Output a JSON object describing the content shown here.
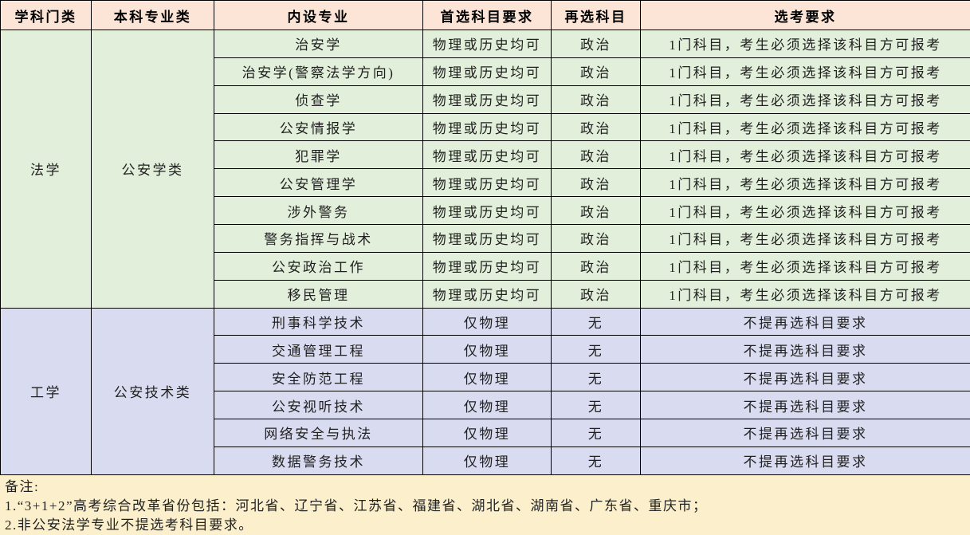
{
  "table": {
    "headers": [
      "学科门类",
      "本科专业类",
      "内设专业",
      "首选科目要求",
      "再选科目",
      "选考要求"
    ],
    "sections": [
      {
        "discipline": "法学",
        "major_class": "公安学类",
        "rows": [
          {
            "major": "治安学",
            "first_subject": "物理或历史均可",
            "second_subject": "政治",
            "requirement": "1门科目，考生必须选择该科目方可报考"
          },
          {
            "major": "治安学(警察法学方向)",
            "first_subject": "物理或历史均可",
            "second_subject": "政治",
            "requirement": "1门科目，考生必须选择该科目方可报考"
          },
          {
            "major": "侦查学",
            "first_subject": "物理或历史均可",
            "second_subject": "政治",
            "requirement": "1门科目，考生必须选择该科目方可报考"
          },
          {
            "major": "公安情报学",
            "first_subject": "物理或历史均可",
            "second_subject": "政治",
            "requirement": "1门科目，考生必须选择该科目方可报考"
          },
          {
            "major": "犯罪学",
            "first_subject": "物理或历史均可",
            "second_subject": "政治",
            "requirement": "1门科目，考生必须选择该科目方可报考"
          },
          {
            "major": "公安管理学",
            "first_subject": "物理或历史均可",
            "second_subject": "政治",
            "requirement": "1门科目，考生必须选择该科目方可报考"
          },
          {
            "major": "涉外警务",
            "first_subject": "物理或历史均可",
            "second_subject": "政治",
            "requirement": "1门科目，考生必须选择该科目方可报考"
          },
          {
            "major": "警务指挥与战术",
            "first_subject": "物理或历史均可",
            "second_subject": "政治",
            "requirement": "1门科目，考生必须选择该科目方可报考"
          },
          {
            "major": "公安政治工作",
            "first_subject": "物理或历史均可",
            "second_subject": "政治",
            "requirement": "1门科目，考生必须选择该科目方可报考"
          },
          {
            "major": "移民管理",
            "first_subject": "物理或历史均可",
            "second_subject": "政治",
            "requirement": "1门科目，考生必须选择该科目方可报考"
          }
        ]
      },
      {
        "discipline": "工学",
        "major_class": "公安技术类",
        "rows": [
          {
            "major": "刑事科学技术",
            "first_subject": "仅物理",
            "second_subject": "无",
            "requirement": "不提再选科目要求"
          },
          {
            "major": "交通管理工程",
            "first_subject": "仅物理",
            "second_subject": "无",
            "requirement": "不提再选科目要求"
          },
          {
            "major": "安全防范工程",
            "first_subject": "仅物理",
            "second_subject": "无",
            "requirement": "不提再选科目要求"
          },
          {
            "major": "公安视听技术",
            "first_subject": "仅物理",
            "second_subject": "无",
            "requirement": "不提再选科目要求"
          },
          {
            "major": "网络安全与执法",
            "first_subject": "仅物理",
            "second_subject": "无",
            "requirement": "不提再选科目要求"
          },
          {
            "major": "数据警务技术",
            "first_subject": "仅物理",
            "second_subject": "无",
            "requirement": "不提再选科目要求"
          }
        ]
      }
    ]
  },
  "notes": {
    "title": "备注:",
    "lines": [
      "1.“3+1+2”高考综合改革省份包括：河北省、辽宁省、江苏省、福建省、湖北省、湖南省、广东省、重庆市；",
      "2.非公安法学专业不提选考科目要求。"
    ]
  },
  "colors": {
    "header_bg": "#FCE4D6",
    "law_bg": "#E2EFDA",
    "engineering_bg": "#D9DCF0",
    "notes_bg": "#FCF0CC",
    "border": "#000000"
  }
}
